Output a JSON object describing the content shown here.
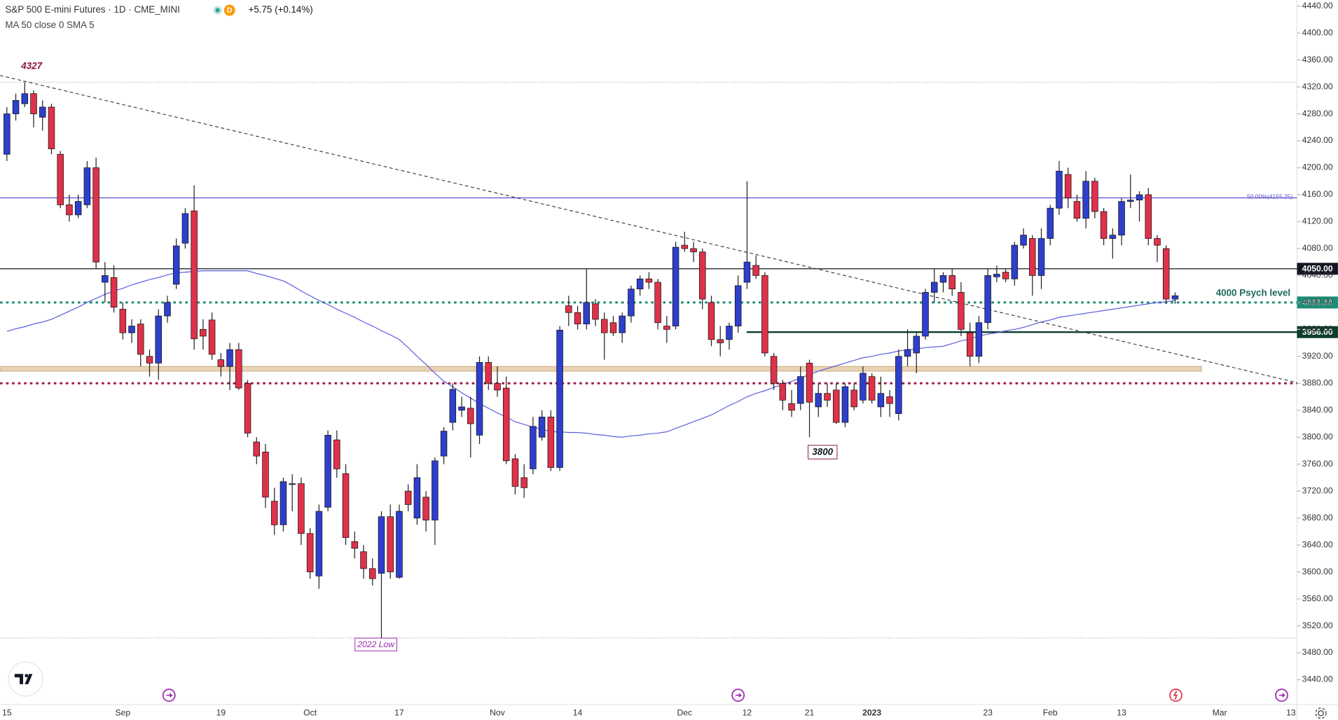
{
  "header": {
    "title": "S&P 500 E-mini Futures · 1D · CME_MINI",
    "badge": "D",
    "change": "+5.75 (+0.14%)",
    "indicator": "MA 50 close 0 SMA 5"
  },
  "chart_data": {
    "type": "candlestick",
    "title": "S&P 500 E-mini Futures · 1D · CME_MINI",
    "categories": [
      "15",
      null,
      null,
      null,
      null,
      null,
      null,
      null,
      null,
      null,
      null,
      null,
      null,
      "Sep",
      null,
      null,
      null,
      null,
      null,
      null,
      null,
      null,
      null,
      null,
      "19",
      null,
      null,
      null,
      null,
      null,
      null,
      null,
      null,
      null,
      "Oct",
      null,
      null,
      null,
      null,
      null,
      null,
      null,
      null,
      null,
      "17",
      null,
      null,
      null,
      null,
      null,
      null,
      null,
      null,
      null,
      null,
      "Nov",
      null,
      null,
      null,
      null,
      null,
      null,
      null,
      null,
      "14",
      null,
      null,
      null,
      null,
      null,
      null,
      null,
      null,
      null,
      null,
      null,
      "Dec",
      null,
      null,
      null,
      null,
      null,
      null,
      "12",
      null,
      null,
      null,
      null,
      null,
      null,
      "21",
      null,
      null,
      null,
      null,
      null,
      null,
      "2023",
      null,
      null,
      null,
      null,
      null,
      null,
      null,
      null,
      null,
      null,
      null,
      null,
      "23",
      null,
      null,
      null,
      null,
      null,
      null,
      "Feb",
      null,
      null,
      null,
      null,
      null,
      null,
      null,
      "13",
      null,
      null,
      null,
      null,
      null,
      null,
      null,
      null,
      null,
      null,
      "Mar",
      null,
      null,
      null,
      null,
      null,
      null,
      null,
      "13"
    ],
    "open": [
      4220,
      4280,
      4295,
      4310,
      4275,
      4290,
      4220,
      4145,
      4130,
      4145,
      4200,
      4030,
      4037,
      3990,
      3955,
      3968,
      3920,
      3910,
      3980,
      4027,
      4088,
      4136,
      3960,
      3974,
      3915,
      3905,
      3930,
      3880,
      3793,
      3778,
      3705,
      3670,
      3730,
      3731,
      3657,
      3594,
      3696,
      3796,
      3746,
      3645,
      3630,
      3605,
      3598,
      3682,
      3592,
      3720,
      3680,
      3711,
      3677,
      3772,
      3822,
      3840,
      3843,
      3803,
      3911,
      3880,
      3873,
      3768,
      3740,
      3753,
      3800,
      3830,
      3755,
      3995,
      3985,
      3968,
      3998,
      3975,
      3970,
      3955,
      3980,
      4020,
      4035,
      4030,
      3965,
      3965,
      4085,
      4080,
      4075,
      4000,
      3945,
      3945,
      3965,
      4030,
      4055,
      4040,
      3920,
      3880,
      3850,
      3850,
      3910,
      3845,
      3865,
      3870,
      3822,
      3870,
      3855,
      3890,
      3845,
      3860,
      3835,
      3920,
      3925,
      3950,
      4015,
      4030,
      4040,
      4015,
      3955,
      3920,
      3970,
      4038,
      4045,
      4035,
      4085,
      4095,
      4040,
      4095,
      4140,
      4190,
      4150,
      4125,
      4180,
      4135,
      4095,
      4100,
      4150,
      4152,
      4160,
      4095,
      4080,
      4005,
      null,
      null,
      null,
      null,
      null,
      null,
      null,
      null,
      null,
      null,
      null,
      null,
      null
    ],
    "high": [
      4290,
      4310,
      4327,
      4315,
      4300,
      4295,
      4225,
      4160,
      4160,
      4210,
      4215,
      4060,
      4055,
      4000,
      3975,
      3975,
      3930,
      3990,
      4010,
      4095,
      4140,
      4174,
      3975,
      3985,
      3925,
      3940,
      3940,
      3885,
      3800,
      3790,
      3725,
      3740,
      3745,
      3740,
      3665,
      3700,
      3810,
      3810,
      3760,
      3660,
      3640,
      3620,
      3690,
      3700,
      3700,
      3730,
      3760,
      3720,
      3770,
      3815,
      3880,
      3860,
      3860,
      3920,
      3920,
      3905,
      3890,
      3775,
      3760,
      3830,
      3840,
      3840,
      3965,
      4010,
      3995,
      4050,
      4005,
      3985,
      3980,
      3985,
      4025,
      4040,
      4045,
      4035,
      3980,
      4090,
      4105,
      4090,
      4080,
      4010,
      3965,
      3970,
      4040,
      4180,
      4070,
      4045,
      3925,
      3885,
      3870,
      3905,
      3915,
      3880,
      3880,
      3880,
      3880,
      3880,
      3905,
      3895,
      3890,
      3870,
      3930,
      3960,
      3955,
      4020,
      4050,
      4045,
      4050,
      4030,
      3970,
      3980,
      4050,
      4055,
      4050,
      4090,
      4110,
      4100,
      4110,
      4145,
      4210,
      4200,
      4160,
      4195,
      4185,
      4140,
      4110,
      4155,
      4190,
      4165,
      4170,
      4100,
      4085,
      4015,
      null,
      null,
      null,
      null,
      null,
      null,
      null,
      null,
      null,
      null,
      null,
      null,
      null
    ],
    "low": [
      4210,
      4270,
      4290,
      4260,
      4255,
      4220,
      4140,
      4120,
      4125,
      4140,
      4050,
      4000,
      3985,
      3945,
      3940,
      3905,
      3890,
      3885,
      3970,
      4020,
      4080,
      3930,
      3930,
      3915,
      3890,
      3870,
      3870,
      3800,
      3760,
      3695,
      3655,
      3660,
      3690,
      3640,
      3590,
      3575,
      3690,
      3740,
      3640,
      3620,
      3590,
      3580,
      3502,
      3590,
      3590,
      3690,
      3670,
      3660,
      3640,
      3760,
      3810,
      3830,
      3770,
      3790,
      3870,
      3860,
      3760,
      3715,
      3710,
      3745,
      3795,
      3750,
      3750,
      3965,
      3960,
      3960,
      3965,
      3915,
      3950,
      3940,
      3970,
      4010,
      4020,
      3960,
      3940,
      3960,
      4075,
      4060,
      3990,
      3935,
      3920,
      3930,
      3955,
      4020,
      4035,
      3920,
      3870,
      3840,
      3830,
      3840,
      3800,
      3830,
      3845,
      3820,
      3815,
      3840,
      3850,
      3850,
      3830,
      3830,
      3825,
      3905,
      3895,
      3945,
      4000,
      4015,
      4010,
      3950,
      3905,
      3910,
      3960,
      4030,
      4030,
      4025,
      4080,
      4010,
      4020,
      4085,
      4130,
      4140,
      4120,
      4110,
      4125,
      4085,
      4065,
      4085,
      4140,
      4120,
      4085,
      4060,
      3998,
      3998,
      null,
      null,
      null,
      null,
      null,
      null,
      null,
      null,
      null,
      null,
      null,
      null,
      null
    ],
    "close": [
      4280,
      4300,
      4310,
      4280,
      4290,
      4228,
      4145,
      4130,
      4150,
      4200,
      4060,
      4040,
      3993,
      3955,
      3965,
      3923,
      3910,
      3980,
      4000,
      4084,
      4132,
      3946,
      3950,
      3923,
      3905,
      3930,
      3873,
      3806,
      3772,
      3711,
      3670,
      3734,
      3731,
      3657,
      3600,
      3690,
      3803,
      3753,
      3651,
      3635,
      3605,
      3590,
      3682,
      3600,
      3690,
      3700,
      3740,
      3677,
      3765,
      3809,
      3871,
      3845,
      3820,
      3911,
      3880,
      3870,
      3765,
      3727,
      3725,
      3816,
      3830,
      3755,
      3959,
      3985,
      3968,
      4000,
      3975,
      3955,
      3955,
      3980,
      4020,
      4035,
      4030,
      3970,
      3960,
      4082,
      4080,
      4075,
      4005,
      3945,
      3940,
      3965,
      4025,
      4060,
      4040,
      3925,
      3880,
      3855,
      3840,
      3890,
      3852,
      3865,
      3855,
      3822,
      3875,
      3845,
      3895,
      3855,
      3865,
      3850,
      3920,
      3930,
      3950,
      4015,
      4030,
      4040,
      4020,
      3960,
      3920,
      3970,
      4040,
      4042,
      4035,
      4085,
      4100,
      4040,
      4095,
      4140,
      4195,
      4155,
      4125,
      4180,
      4135,
      4095,
      4100,
      4150,
      4152,
      4160,
      4095,
      4085,
      4005,
      4010,
      null,
      null,
      null,
      null,
      null,
      null,
      null,
      null,
      null,
      null,
      null,
      null,
      null
    ],
    "up_color": "#2e3fcc",
    "down_color": "#e0314b",
    "ma": {
      "name": "MA 50 close 0 SMA 5",
      "color": "#5b5fe0",
      "values": [
        3957,
        3961,
        3964,
        3968,
        3971,
        3975,
        3981,
        3987,
        3993,
        4000,
        4006,
        4012,
        4017,
        4021,
        4026,
        4030,
        4034,
        4037,
        4041,
        4044,
        4045,
        4046,
        4047,
        4047,
        4047,
        4047,
        4047,
        4047,
        4043,
        4040,
        4036,
        4032,
        4025,
        4017,
        4010,
        4003,
        3997,
        3990,
        3984,
        3978,
        3971,
        3965,
        3958,
        3952,
        3945,
        3933,
        3920,
        3908,
        3895,
        3883,
        3875,
        3866,
        3858,
        3850,
        3843,
        3836,
        3830,
        3823,
        3819,
        3815,
        3812,
        3808,
        3808,
        3807,
        3807,
        3806,
        3804,
        3803,
        3801,
        3800,
        3802,
        3803,
        3805,
        3806,
        3808,
        3813,
        3818,
        3823,
        3828,
        3833,
        3840,
        3847,
        3853,
        3860,
        3865,
        3869,
        3874,
        3878,
        3883,
        3888,
        3893,
        3898,
        3902,
        3906,
        3910,
        3914,
        3918,
        3920,
        3923,
        3925,
        3928,
        3930,
        3931,
        3933,
        3934,
        3935,
        3939,
        3943,
        3946,
        3950,
        3953,
        3955,
        3958,
        3960,
        3963,
        3967,
        3971,
        3974,
        3978,
        3980,
        3982,
        3984,
        3986,
        3988,
        3990,
        3992,
        3994,
        3996,
        3998,
        4000,
        4001,
        4003,
        null,
        null,
        null,
        null,
        null,
        null,
        null,
        null,
        null,
        null,
        null,
        null,
        null
      ]
    },
    "ylim": [
      3403,
      4449
    ],
    "yticks": [
      {
        "value": 4440,
        "label": "4440.00"
      },
      {
        "value": 4400,
        "label": "4400.00"
      },
      {
        "value": 4360,
        "label": "4360.00"
      },
      {
        "value": 4320,
        "label": "4320.00"
      },
      {
        "value": 4280,
        "label": "4280.00"
      },
      {
        "value": 4240,
        "label": "4240.00"
      },
      {
        "value": 4200,
        "label": "4200.00"
      },
      {
        "value": 4160,
        "label": "4160.00"
      },
      {
        "value": 4120,
        "label": "4120.00"
      },
      {
        "value": 4080,
        "label": "4080.00"
      },
      {
        "value": 4040,
        "label": "4040.00"
      },
      {
        "value": 4000,
        "label": "4000.00"
      },
      {
        "value": 3960,
        "label": "3960.00"
      },
      {
        "value": 3920,
        "label": "3920.00"
      },
      {
        "value": 3880,
        "label": "3880.00"
      },
      {
        "value": 3840,
        "label": "3840.00"
      },
      {
        "value": 3800,
        "label": "3800.00"
      },
      {
        "value": 3760,
        "label": "3760.00"
      },
      {
        "value": 3720,
        "label": "3720.00"
      },
      {
        "value": 3680,
        "label": "3680.00"
      },
      {
        "value": 3640,
        "label": "3640.00"
      },
      {
        "value": 3600,
        "label": "3600.00"
      },
      {
        "value": 3560,
        "label": "3560.00"
      },
      {
        "value": 3520,
        "label": "3520.00"
      },
      {
        "value": 3480,
        "label": "3480.00"
      },
      {
        "value": 3440,
        "label": "3440.00"
      }
    ],
    "levels": [
      {
        "value": 4155.25,
        "label": "50.00%(4155.25)",
        "color": "#5b4fcf",
        "dash": false,
        "tag": false
      },
      {
        "value": 4050,
        "label": "4050.00",
        "color": "#131722",
        "dash": false,
        "tag": true
      },
      {
        "value": 4000,
        "label": "4000.00",
        "color": "#1e8c76",
        "dash": true,
        "tag": true
      },
      {
        "value": 3956,
        "label": "3956.00",
        "color": "#0b3d2c",
        "dash": false,
        "tag": true
      },
      {
        "value": 3880,
        "color": "#9c1a4a",
        "dash": true,
        "tag": false
      }
    ],
    "zone": {
      "from": 3898,
      "to": 3905,
      "color": "#e9d3b5"
    },
    "hlines": [
      4327,
      3502
    ],
    "trendline": {
      "from": 4337,
      "to": 3881
    },
    "high_label": "4327",
    "low_label": "2022 Low",
    "swing_label": "3800",
    "psych_label": "4000 Psych level",
    "grid": false
  }
}
